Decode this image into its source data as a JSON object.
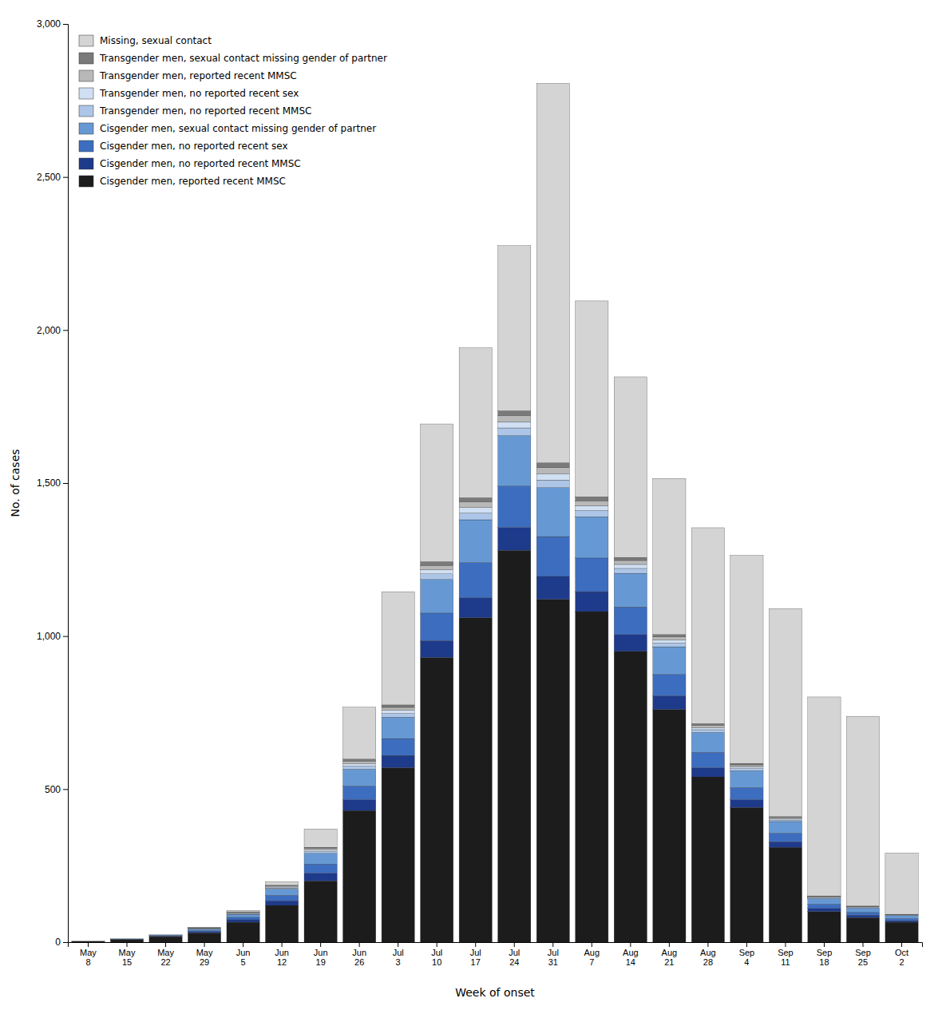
{
  "chart_data": {
    "type": "bar",
    "stacked": true,
    "legend": "upper left",
    "grid": false,
    "xlabel": "Week of onset",
    "ylabel": "No. of cases",
    "categories": [
      "May\n8",
      "May\n15",
      "May\n22",
      "May\n29",
      "Jun\n5",
      "Jun\n12",
      "Jun\n19",
      "Jun\n26",
      "Jul\n3",
      "Jul\n10",
      "Jul\n17",
      "Jul\n24",
      "Jul\n31",
      "Aug\n7",
      "Aug\n14",
      "Aug\n21",
      "Aug\n28",
      "Sep\n4",
      "Sep\n11",
      "Sep\n18",
      "Sep\n25",
      "Oct\n2"
    ],
    "series": [
      {
        "name": "Cisgender men, reported recent MMSC",
        "color": "#1c1c1c",
        "values": [
          3,
          8,
          18,
          30,
          65,
          120,
          200,
          430,
          570,
          930,
          1060,
          1280,
          1120,
          1080,
          950,
          760,
          540,
          440,
          310,
          100,
          80,
          65
        ]
      },
      {
        "name": "Cisgender men, no reported recent MMSC",
        "color": "#1e3a8a",
        "values": [
          0,
          1,
          2,
          4,
          8,
          15,
          25,
          35,
          40,
          55,
          65,
          75,
          75,
          65,
          55,
          45,
          30,
          25,
          18,
          10,
          8,
          5
        ]
      },
      {
        "name": "Cisgender men, no reported recent sex",
        "color": "#3d6dbf",
        "values": [
          0,
          1,
          2,
          4,
          8,
          18,
          30,
          45,
          55,
          90,
          115,
          135,
          130,
          110,
          90,
          70,
          50,
          40,
          28,
          14,
          10,
          7
        ]
      },
      {
        "name": "Cisgender men, sexual contact missing gender of partner",
        "color": "#6699d4",
        "values": [
          0,
          1,
          2,
          5,
          10,
          20,
          35,
          55,
          70,
          110,
          140,
          165,
          160,
          135,
          110,
          90,
          65,
          55,
          38,
          18,
          13,
          10
        ]
      },
      {
        "name": "Transgender men, no reported recent MMSC",
        "color": "#adc6e8",
        "values": [
          0,
          0,
          0,
          1,
          2,
          4,
          6,
          10,
          12,
          18,
          22,
          25,
          25,
          20,
          16,
          12,
          9,
          7,
          5,
          3,
          2,
          1
        ]
      },
      {
        "name": "Transgender men, no reported recent sex",
        "color": "#d0dff2",
        "values": [
          0,
          0,
          0,
          1,
          2,
          3,
          5,
          8,
          10,
          14,
          18,
          20,
          20,
          16,
          13,
          10,
          7,
          6,
          4,
          2,
          2,
          1
        ]
      },
      {
        "name": "Transgender men, reported recent MMSC",
        "color": "#b8b8b8",
        "values": [
          0,
          0,
          0,
          1,
          2,
          3,
          5,
          8,
          10,
          14,
          18,
          20,
          20,
          16,
          13,
          10,
          7,
          6,
          4,
          2,
          2,
          1
        ]
      },
      {
        "name": "Transgender men, sexual contact missing gender of partner",
        "color": "#7a7a7a",
        "values": [
          0,
          0,
          0,
          1,
          2,
          3,
          4,
          7,
          8,
          12,
          14,
          16,
          16,
          13,
          10,
          8,
          6,
          5,
          3,
          2,
          1,
          1
        ]
      },
      {
        "name": "Missing, sexual contact",
        "color": "#d4d4d4",
        "values": [
          0,
          0,
          0,
          2,
          5,
          12,
          60,
          170,
          370,
          450,
          490,
          540,
          1240,
          640,
          590,
          510,
          640,
          680,
          680,
          650,
          620,
          200
        ]
      }
    ],
    "ylim": [
      0,
      3000
    ],
    "yticks": [
      0,
      500,
      {
        "value": 1000,
        "label": "1,000"
      },
      {
        "value": 1500,
        "label": "1,500"
      },
      {
        "value": 2000,
        "label": "2,000"
      },
      {
        "value": 2500,
        "label": "2,500"
      },
      {
        "value": 3000,
        "label": "3,000"
      }
    ]
  }
}
